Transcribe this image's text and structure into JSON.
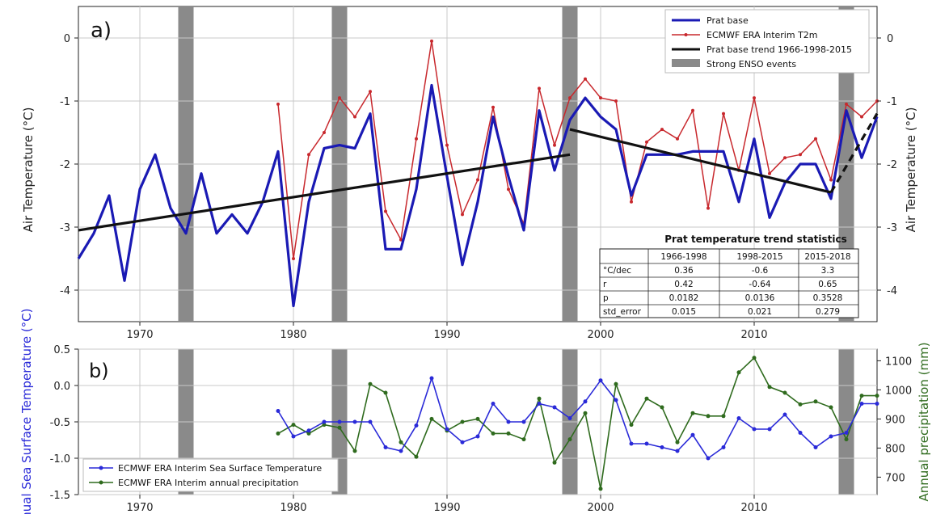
{
  "chart_data": [
    {
      "id": "a",
      "type": "line",
      "panel_label": "a)",
      "ylabel": "Air Temperature (°C)",
      "ylabel_right": "Air Temperature (°C)",
      "xlim": [
        1966,
        2018
      ],
      "ylim": [
        -4.5,
        0.5
      ],
      "xticks": [
        1970,
        1980,
        1990,
        2000,
        2010
      ],
      "yticks": [
        0,
        -1,
        -2,
        -3,
        -4
      ],
      "grid": true,
      "legend_position": "top-right",
      "colors": {
        "prat": "#1a1ab4",
        "era": "#c8282d",
        "trend": "#111111",
        "enso": "#8a8a8a"
      },
      "enso_bands": [
        [
          1972.5,
          1973.5
        ],
        [
          1982.5,
          1983.5
        ],
        [
          1997.5,
          1998.5
        ],
        [
          2015.5,
          2016.5
        ]
      ],
      "series": [
        {
          "name": "Prat base",
          "x": [
            1966,
            1967,
            1968,
            1969,
            1970,
            1971,
            1972,
            1973,
            1974,
            1975,
            1976,
            1977,
            1978,
            1979,
            1980,
            1981,
            1982,
            1983,
            1984,
            1985,
            1986,
            1987,
            1988,
            1989,
            1990,
            1991,
            1992,
            1993,
            1994,
            1995,
            1996,
            1997,
            1998,
            1999,
            2000,
            2001,
            2002,
            2003,
            2004,
            2005,
            2006,
            2007,
            2008,
            2009,
            2010,
            2011,
            2012,
            2013,
            2014,
            2015,
            2016,
            2017,
            2018
          ],
          "y": [
            -3.5,
            -3.1,
            -2.5,
            -3.85,
            -2.4,
            -1.85,
            -2.7,
            -3.1,
            -2.15,
            -3.1,
            -2.8,
            -3.1,
            -2.6,
            -1.8,
            -4.25,
            -2.6,
            -1.75,
            -1.7,
            -1.75,
            -1.2,
            -3.35,
            -3.35,
            -2.4,
            -0.75,
            -2.2,
            -3.6,
            -2.6,
            -1.25,
            -2.2,
            -3.05,
            -1.15,
            -2.1,
            -1.3,
            -0.95,
            -1.25,
            -1.45,
            -2.5,
            -1.85,
            -1.85,
            -1.85,
            -1.8,
            -1.8,
            -1.8,
            -2.6,
            -1.6,
            -2.85,
            -2.3,
            -2.0,
            -2.0,
            -2.55,
            -1.15,
            -1.9,
            -1.25
          ]
        },
        {
          "name": "ECMWF ERA Interim T2m",
          "x": [
            1979,
            1980,
            1981,
            1982,
            1983,
            1984,
            1985,
            1986,
            1987,
            1988,
            1989,
            1990,
            1991,
            1992,
            1993,
            1994,
            1995,
            1996,
            1997,
            1998,
            1999,
            2000,
            2001,
            2002,
            2003,
            2004,
            2005,
            2006,
            2007,
            2008,
            2009,
            2010,
            2011,
            2012,
            2013,
            2014,
            2015,
            2016,
            2017,
            2018
          ],
          "y": [
            -1.05,
            -3.5,
            -1.85,
            -1.5,
            -0.95,
            -1.25,
            -0.85,
            -2.75,
            -3.2,
            -1.6,
            -0.05,
            -1.7,
            -2.8,
            -2.25,
            -1.1,
            -2.4,
            -2.95,
            -0.8,
            -1.7,
            -0.95,
            -0.65,
            -0.95,
            -1.0,
            -2.6,
            -1.65,
            -1.45,
            -1.6,
            -1.15,
            -2.7,
            -1.2,
            -2.1,
            -0.95,
            -2.15,
            -1.9,
            -1.85,
            -1.6,
            -2.25,
            -1.05,
            -1.25,
            -1.0
          ]
        },
        {
          "name": "Prat base trend 1966-1998-2015",
          "segments": [
            {
              "x": [
                1966,
                1998
              ],
              "y": [
                -3.05,
                -1.85
              ]
            },
            {
              "x": [
                1998,
                2015
              ],
              "y": [
                -1.45,
                -2.45
              ]
            },
            {
              "x": [
                2015,
                2018
              ],
              "y": [
                -2.45,
                -1.2
              ],
              "style": "dashed"
            }
          ]
        },
        {
          "name": "Strong ENSO events",
          "style": "band"
        }
      ],
      "table": {
        "title": "Prat temperature trend statistics",
        "columns": [
          "",
          "1966-1998",
          "1998-2015",
          "2015-2018"
        ],
        "rows": [
          [
            "°C/dec",
            "0.36",
            "-0.6",
            "3.3"
          ],
          [
            "r",
            "0.42",
            "-0.64",
            "0.65"
          ],
          [
            "p",
            "0.0182",
            "0.0136",
            "0.3528"
          ],
          [
            "std_error",
            "0.015",
            "0.021",
            "0.279"
          ]
        ]
      }
    },
    {
      "id": "b",
      "type": "line",
      "panel_label": "b)",
      "ylabel": "Annual Sea Surface Temperature (°C)",
      "ylabel_right": "Annual precipitation (mm)",
      "xlim": [
        1966,
        2018
      ],
      "ylim": [
        -1.5,
        0.5
      ],
      "ylim_right": [
        640,
        1140
      ],
      "xticks": [
        1970,
        1980,
        1990,
        2000,
        2010
      ],
      "yticks": [
        0.5,
        0.0,
        -0.5,
        -1.0,
        -1.5
      ],
      "yticks_right": [
        700,
        800,
        900,
        1000,
        1100
      ],
      "grid": true,
      "legend_position": "bottom-left",
      "colors": {
        "sst": "#2a2ad8",
        "precip": "#2f6b1e",
        "enso": "#8a8a8a"
      },
      "enso_bands": [
        [
          1972.5,
          1973.5
        ],
        [
          1982.5,
          1983.5
        ],
        [
          1997.5,
          1998.5
        ],
        [
          2015.5,
          2016.5
        ]
      ],
      "series": [
        {
          "name": "ECMWF ERA Interim Sea Surface Temperature",
          "axis": "left",
          "x": [
            1979,
            1980,
            1981,
            1982,
            1983,
            1984,
            1985,
            1986,
            1987,
            1988,
            1989,
            1990,
            1991,
            1992,
            1993,
            1994,
            1995,
            1996,
            1997,
            1998,
            1999,
            2000,
            2001,
            2002,
            2003,
            2004,
            2005,
            2006,
            2007,
            2008,
            2009,
            2010,
            2011,
            2012,
            2013,
            2014,
            2015,
            2016,
            2017,
            2018
          ],
          "y": [
            -0.35,
            -0.7,
            -0.62,
            -0.5,
            -0.5,
            -0.5,
            -0.5,
            -0.85,
            -0.9,
            -0.55,
            0.1,
            -0.6,
            -0.78,
            -0.7,
            -0.25,
            -0.5,
            -0.5,
            -0.25,
            -0.3,
            -0.45,
            -0.22,
            0.07,
            -0.2,
            -0.8,
            -0.8,
            -0.85,
            -0.9,
            -0.68,
            -1.0,
            -0.85,
            -0.45,
            -0.6,
            -0.6,
            -0.4,
            -0.65,
            -0.85,
            -0.7,
            -0.65,
            -0.25,
            -0.25
          ]
        },
        {
          "name": "ECMWF ERA Interim annual precipitation",
          "axis": "right",
          "x": [
            1979,
            1980,
            1981,
            1982,
            1983,
            1984,
            1985,
            1986,
            1987,
            1988,
            1989,
            1990,
            1991,
            1992,
            1993,
            1994,
            1995,
            1996,
            1997,
            1998,
            1999,
            2000,
            2001,
            2002,
            2003,
            2004,
            2005,
            2006,
            2007,
            2008,
            2009,
            2010,
            2011,
            2012,
            2013,
            2014,
            2015,
            2016,
            2017,
            2018
          ],
          "y": [
            850,
            880,
            850,
            880,
            870,
            790,
            1020,
            990,
            820,
            770,
            900,
            860,
            890,
            900,
            850,
            850,
            830,
            970,
            750,
            830,
            920,
            660,
            1020,
            880,
            970,
            940,
            820,
            920,
            910,
            910,
            1060,
            1110,
            1010,
            990,
            950,
            960,
            940,
            830,
            980,
            980
          ]
        }
      ]
    }
  ]
}
